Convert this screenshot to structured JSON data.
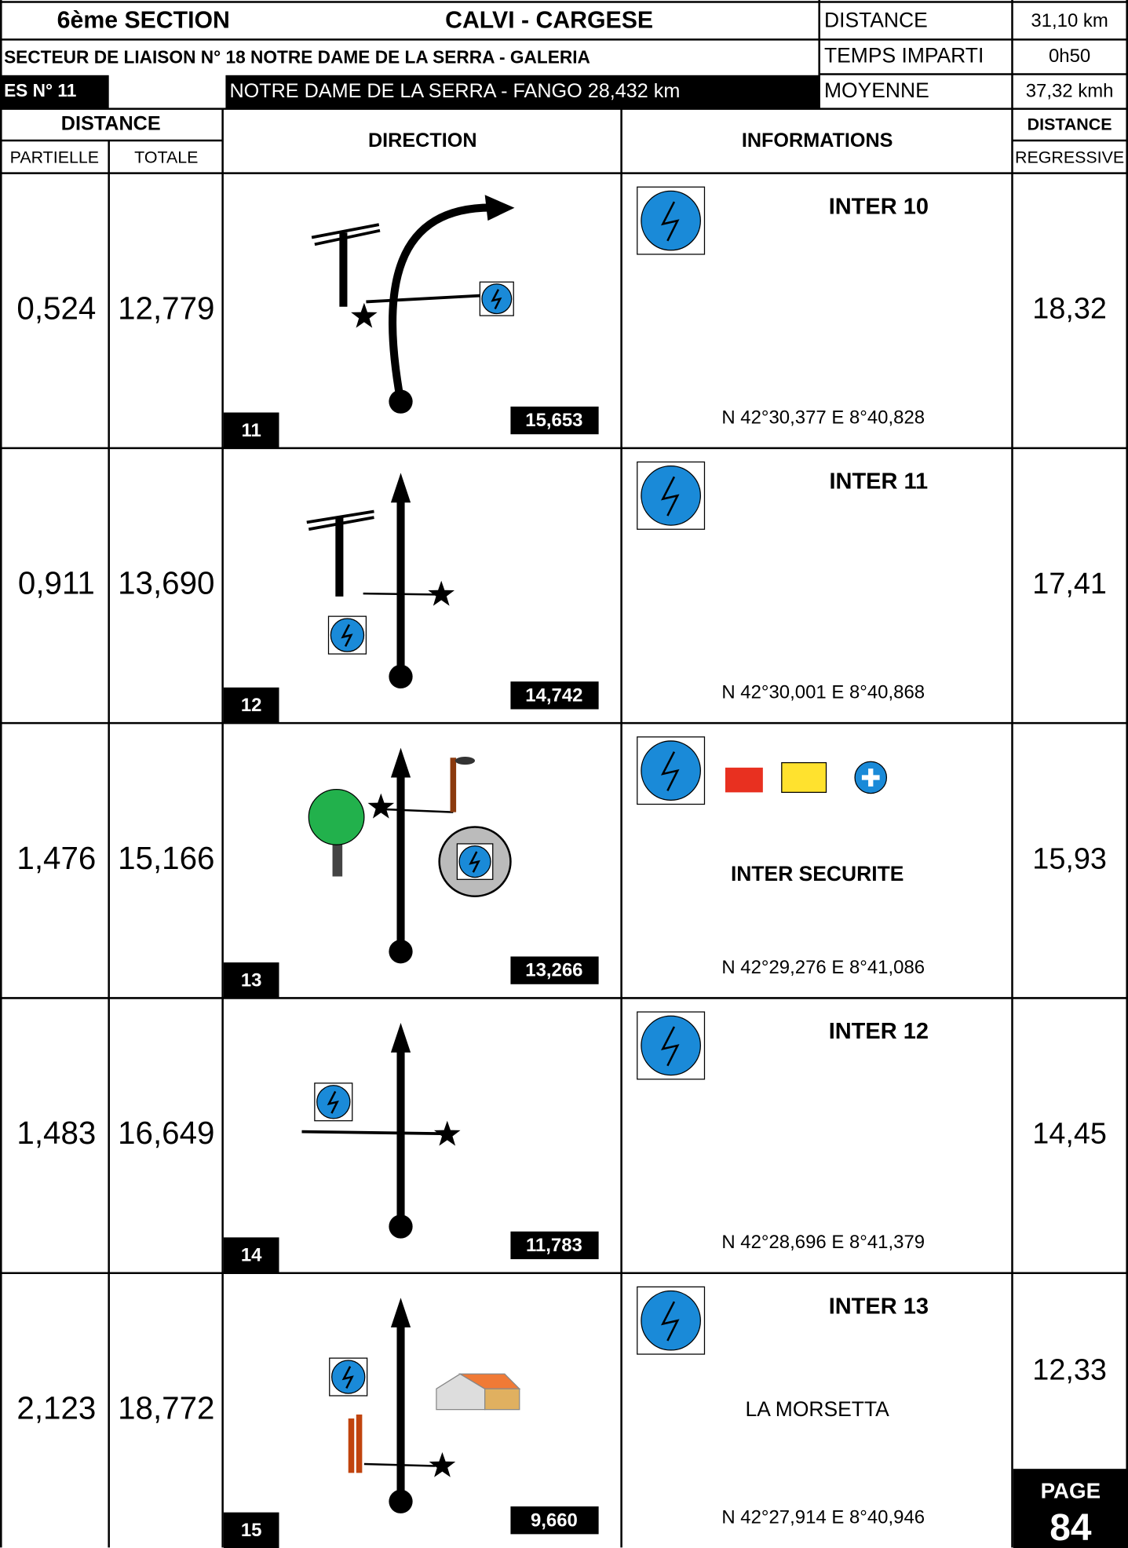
{
  "header": {
    "section": "6ème SECTION",
    "route": "CALVI - CARGESE",
    "liaison": "SECTEUR DE LIAISON N° 18  NOTRE DAME DE LA SERRA - GALERIA",
    "es": "ES N° 11",
    "es_desc": "NOTRE DAME DE LA SERRA - FANGO 28,432 km",
    "stats": [
      {
        "label": "DISTANCE",
        "value": "31,10 km"
      },
      {
        "label": "TEMPS IMPARTI",
        "value": "0h50"
      },
      {
        "label": "MOYENNE",
        "value": "37,32 kmh"
      }
    ]
  },
  "columns": {
    "distance": "DISTANCE",
    "partielle": "PARTIELLE",
    "totale": "TOTALE",
    "direction": "DIRECTION",
    "informations": "INFORMATIONS",
    "distance_reg": "DISTANCE",
    "regressive": "REGRESSIVE"
  },
  "rows": [
    {
      "partielle": "0,524",
      "totale": "12,779",
      "case": "11",
      "remaining": "15,653",
      "title": "INTER 10",
      "coords": "N 42°30,377  E 8°40,828",
      "regressive": "18,32"
    },
    {
      "partielle": "0,911",
      "totale": "13,690",
      "case": "12",
      "remaining": "14,742",
      "title": "INTER 11",
      "coords": "N 42°30,001  E 8°40,868",
      "regressive": "17,41"
    },
    {
      "partielle": "1,476",
      "totale": "15,166",
      "case": "13",
      "remaining": "13,266",
      "title": "INTER SECURITE",
      "coords": "N 42°29,276  E 8°41,086",
      "regressive": "15,93"
    },
    {
      "partielle": "1,483",
      "totale": "16,649",
      "case": "14",
      "remaining": "11,783",
      "title": "INTER 12",
      "coords": "N 42°28,696  E 8°41,379",
      "regressive": "14,45"
    },
    {
      "partielle": "2,123",
      "totale": "18,772",
      "case": "15",
      "remaining": "9,660",
      "title": "INTER 13",
      "subtitle": "LA MORSETTA",
      "coords": "N 42°27,914  E 8°40,946",
      "regressive": "12,33"
    }
  ],
  "footer": {
    "page": "PAGE",
    "number": "84"
  }
}
